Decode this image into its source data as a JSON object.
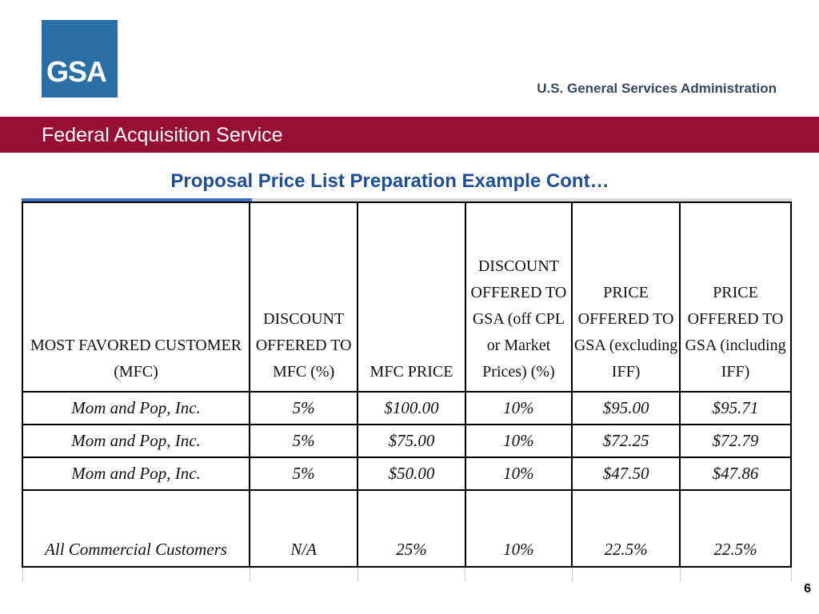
{
  "header": {
    "logo_text": "GSA",
    "agency": "U.S. General Services Administration",
    "service": "Federal Acquisition Service"
  },
  "slide": {
    "title": "Proposal Price List Preparation Example Cont…",
    "page_number": "6"
  },
  "table": {
    "headers": [
      "MOST FAVORED CUSTOMER (MFC)",
      "DISCOUNT OFFERED TO MFC (%)",
      "MFC PRICE",
      "DISCOUNT OFFERED TO GSA (off CPL or Market Prices) (%)",
      "PRICE OFFERED TO GSA (excluding IFF)",
      "PRICE OFFERED TO GSA (including IFF)"
    ],
    "rows": [
      [
        "Mom and Pop, Inc.",
        "5%",
        "$100.00",
        "10%",
        "$95.00",
        "$95.71"
      ],
      [
        "Mom and Pop, Inc.",
        "5%",
        "$75.00",
        "10%",
        "$72.25",
        "$72.79"
      ],
      [
        "Mom and Pop, Inc.",
        "5%",
        "$50.00",
        "10%",
        "$47.50",
        "$47.86"
      ],
      [
        "All Commercial Customers",
        "N/A",
        "25%",
        "10%",
        "22.5%",
        "22.5%"
      ]
    ]
  },
  "colors": {
    "band": "#970f33",
    "logo": "#2a6ea6",
    "title": "#1f4e99"
  }
}
